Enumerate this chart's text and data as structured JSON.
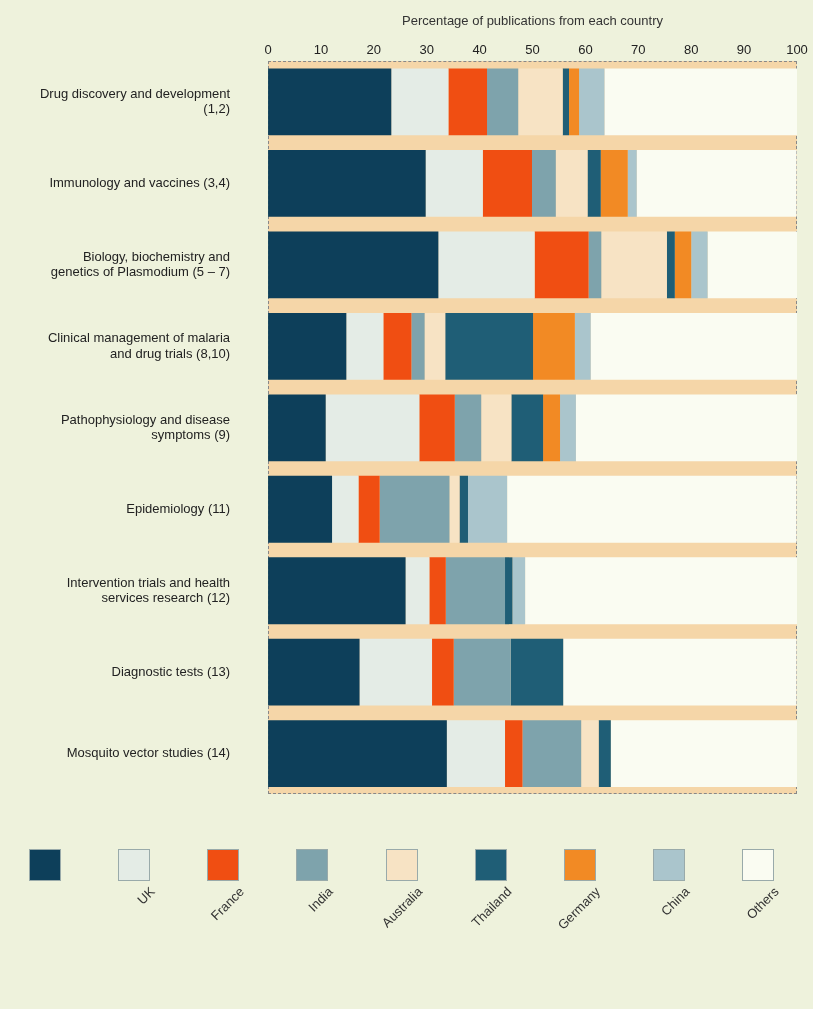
{
  "chart_data": {
    "type": "bar",
    "orientation": "horizontal",
    "stacked": true,
    "xlabel": "Percentage of publications from each country",
    "categories": [
      "Drug discovery and development  (1,2)",
      "Immunology and vaccines (3,4)",
      "Biology, biochemistry and genetics of Plasmodium (5 – 7)",
      "Clinical management of malaria and drug trials (8,10)",
      "Pathophysiology and disease symptoms (9)",
      "Epidemiology (11)",
      "Intervention trials and health services research (12)",
      "Diagnostic tests (13)",
      "Mosquito vector studies (14)"
    ],
    "xlim": [
      0,
      100
    ],
    "xticks": [
      0,
      10,
      20,
      30,
      40,
      50,
      60,
      70,
      80,
      90,
      100
    ],
    "grid": false,
    "legend": "bottom",
    "series": [
      {
        "color": "#0d3f5a",
        "values": [
          23.3,
          29.8,
          32.2,
          14.8,
          10.9,
          12.1,
          26.0,
          17.3,
          33.8
        ]
      },
      {
        "name": "UK",
        "color": "#e4ece6",
        "values": [
          10.8,
          10.8,
          18.2,
          7.0,
          17.7,
          5.0,
          4.5,
          13.7,
          11.0
        ]
      },
      {
        "name": "France",
        "color": "#f04e12",
        "values": [
          7.3,
          9.3,
          10.2,
          5.3,
          6.7,
          4.0,
          3.1,
          4.1,
          3.3
        ]
      },
      {
        "name": "India",
        "color": "#7ea3ac",
        "values": [
          5.9,
          4.5,
          2.4,
          2.5,
          5.0,
          13.2,
          11.2,
          10.8,
          11.1
        ]
      },
      {
        "name": "Australia",
        "color": "#f7e3c4",
        "values": [
          8.4,
          6.0,
          12.4,
          3.9,
          5.7,
          1.9,
          0,
          0,
          3.3
        ]
      },
      {
        "name": "Thailand",
        "color": "#1f5e76",
        "values": [
          1.2,
          2.5,
          1.5,
          16.6,
          6.0,
          1.6,
          1.4,
          9.9,
          2.3
        ]
      },
      {
        "name": "Germany",
        "color": "#f28a24",
        "values": [
          1.9,
          5.1,
          3.1,
          7.9,
          3.2,
          0,
          0,
          0,
          0
        ]
      },
      {
        "name": "China",
        "color": "#aac5cc",
        "values": [
          4.8,
          1.7,
          3.1,
          3.0,
          3.0,
          7.4,
          2.4,
          0,
          0
        ]
      },
      {
        "name": "Others",
        "color": "#fafcf2",
        "values": [
          36.4,
          30.2,
          17.0,
          39.1,
          41.9,
          54.7,
          51.5,
          44.1,
          35.2
        ]
      }
    ]
  }
}
